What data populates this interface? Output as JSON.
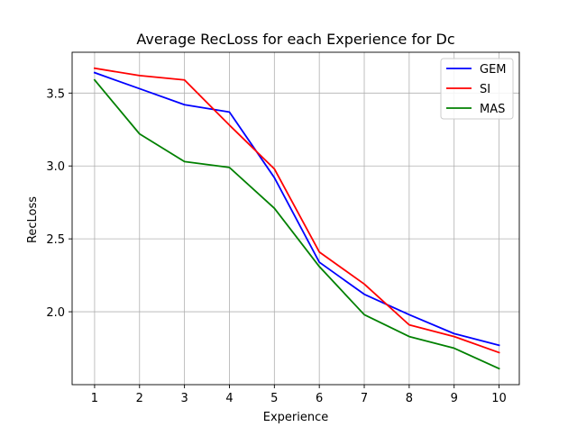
{
  "chart_data": {
    "type": "line",
    "title": "Average RecLoss for each Experience for Dc",
    "xlabel": "Experience",
    "ylabel": "RecLoss",
    "x": [
      1,
      2,
      3,
      4,
      5,
      6,
      7,
      8,
      9,
      10
    ],
    "xlim": [
      0.5,
      10.45
    ],
    "ylim": [
      1.5,
      3.78
    ],
    "xticks": [
      1,
      2,
      3,
      4,
      5,
      6,
      7,
      8,
      9,
      10
    ],
    "yticks": [
      2.0,
      2.5,
      3.0,
      3.5
    ],
    "ytick_labels": [
      "2.0",
      "2.5",
      "3.0",
      "3.5"
    ],
    "grid": true,
    "legend_position": "top-right",
    "series": [
      {
        "name": "GEM",
        "color": "#0000ff",
        "values": [
          3.64,
          3.53,
          3.42,
          3.37,
          2.92,
          2.34,
          2.12,
          1.98,
          1.85,
          1.77
        ]
      },
      {
        "name": "SI",
        "color": "#ff0000",
        "values": [
          3.67,
          3.62,
          3.59,
          3.28,
          2.98,
          2.41,
          2.19,
          1.91,
          1.83,
          1.72
        ]
      },
      {
        "name": "MAS",
        "color": "#008000",
        "values": [
          3.59,
          3.22,
          3.03,
          2.99,
          2.71,
          2.31,
          1.98,
          1.83,
          1.75,
          1.61
        ]
      }
    ]
  }
}
